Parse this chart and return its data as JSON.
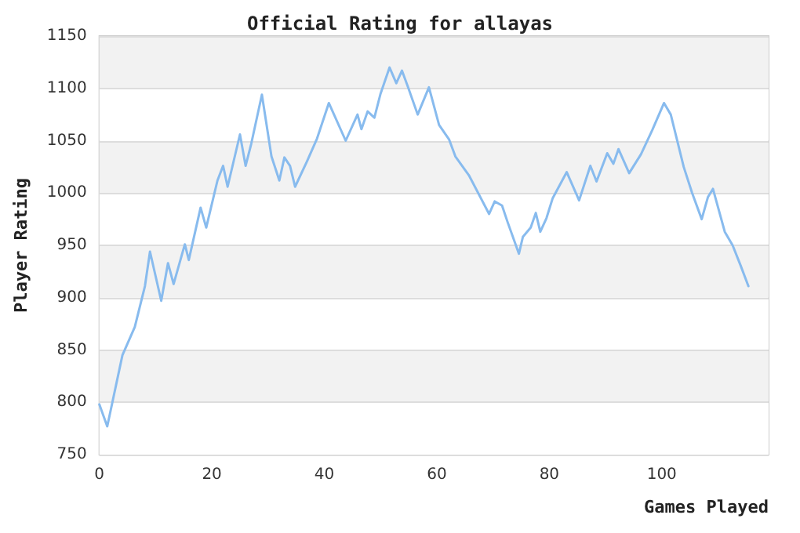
{
  "chart_data": {
    "type": "line",
    "title": "Official Rating for allayas",
    "xlabel": "Games Played",
    "ylabel": "Player Rating",
    "xlim": [
      0,
      119
    ],
    "xticks": [
      0,
      20,
      40,
      60,
      80,
      100
    ],
    "ylim": [
      750,
      1150
    ],
    "yticks": [
      750,
      800,
      850,
      900,
      950,
      1000,
      1050,
      1100,
      1150
    ],
    "grid": "y",
    "marker": "none",
    "line_style": "solid",
    "series": [
      {
        "color": "#88bbee",
        "x": [
          0,
          1.4,
          4.1,
          6.3,
          8.1,
          9.0,
          11.0,
          12.2,
          13.2,
          15.2,
          15.9,
          18.0,
          19.0,
          21.0,
          22.0,
          22.8,
          25.0,
          26.0,
          27.0,
          28.9,
          30.6,
          32.0,
          32.9,
          33.9,
          34.8,
          36.9,
          38.7,
          40.8,
          43.8,
          45.9,
          46.6,
          47.7,
          48.9,
          50.0,
          51.6,
          52.8,
          53.8,
          54.9,
          56.6,
          58.6,
          60.4,
          62.2,
          63.3,
          65.7,
          69.3,
          70.3,
          71.6,
          72.6,
          74.6,
          75.3,
          76.7,
          77.6,
          78.4,
          79.5,
          80.6,
          83.1,
          85.3,
          87.3,
          88.4,
          90.3,
          91.4,
          92.3,
          94.2,
          96.3,
          98.3,
          100.4,
          101.6,
          103.9,
          105.4,
          107.1,
          108.2,
          109.1,
          111.2,
          112.6,
          114.0,
          115.4
        ],
        "values": [
          798,
          777,
          845,
          872,
          911,
          944,
          897,
          933,
          913,
          951,
          936,
          986,
          967,
          1012,
          1026,
          1006,
          1056,
          1026,
          1047,
          1094,
          1035,
          1012,
          1034,
          1026,
          1006,
          1030,
          1052,
          1086,
          1050,
          1075,
          1061,
          1078,
          1072,
          1095,
          1120,
          1105,
          1117,
          1101,
          1075,
          1101,
          1065,
          1051,
          1035,
          1017,
          980,
          992,
          988,
          972,
          942,
          958,
          967,
          981,
          963,
          976,
          995,
          1020,
          993,
          1026,
          1011,
          1038,
          1028,
          1042,
          1019,
          1037,
          1060,
          1086,
          1075,
          1025,
          1000,
          975,
          996,
          1004,
          963,
          950,
          931,
          911
        ]
      }
    ]
  }
}
